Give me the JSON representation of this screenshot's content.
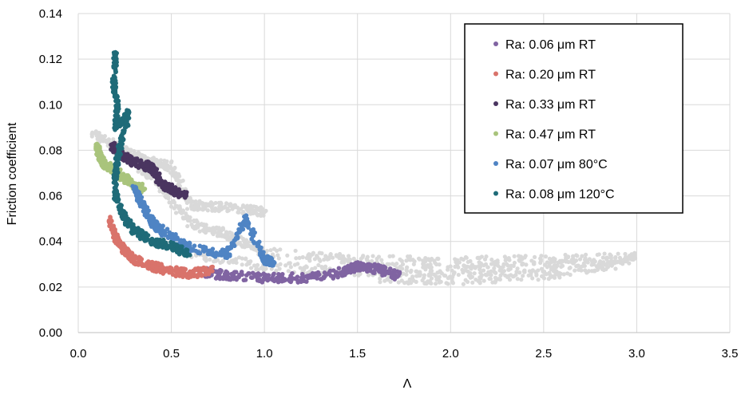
{
  "chart_data": {
    "type": "scatter",
    "title": "",
    "xlabel": "Λ",
    "ylabel": "Friction coefficient",
    "xlim": [
      0,
      3.5
    ],
    "ylim": [
      0,
      0.14
    ],
    "x_ticks": [
      "0.0",
      "0.5",
      "1.0",
      "1.5",
      "2.0",
      "2.5",
      "3.0",
      "3.5"
    ],
    "y_ticks": [
      "0.00",
      "0.02",
      "0.04",
      "0.06",
      "0.08",
      "0.10",
      "0.12",
      "0.14"
    ],
    "grid": true,
    "legend_position": "top-right",
    "background_points_color": "#d9d9d9",
    "series": [
      {
        "name": "Ra: 0.06 μm RT",
        "color": "#8064a2",
        "points": [
          [
            0.65,
            0.027
          ],
          [
            0.8,
            0.025
          ],
          [
            1.0,
            0.024
          ],
          [
            1.2,
            0.024
          ],
          [
            1.4,
            0.026
          ],
          [
            1.5,
            0.029
          ],
          [
            1.6,
            0.028
          ],
          [
            1.72,
            0.025
          ]
        ]
      },
      {
        "name": "Ra: 0.20 μm RT",
        "color": "#d9736b",
        "points": [
          [
            0.17,
            0.049
          ],
          [
            0.2,
            0.042
          ],
          [
            0.25,
            0.036
          ],
          [
            0.3,
            0.032
          ],
          [
            0.4,
            0.029
          ],
          [
            0.5,
            0.027
          ],
          [
            0.6,
            0.026
          ],
          [
            0.72,
            0.027
          ]
        ]
      },
      {
        "name": "Ra: 0.33 μm RT",
        "color": "#4a3560",
        "points": [
          [
            0.18,
            0.082
          ],
          [
            0.25,
            0.077
          ],
          [
            0.3,
            0.075
          ],
          [
            0.4,
            0.072
          ],
          [
            0.45,
            0.065
          ],
          [
            0.5,
            0.063
          ],
          [
            0.58,
            0.06
          ]
        ]
      },
      {
        "name": "Ra: 0.47 μm RT",
        "color": "#a9c47c",
        "points": [
          [
            0.1,
            0.082
          ],
          [
            0.12,
            0.076
          ],
          [
            0.15,
            0.073
          ],
          [
            0.2,
            0.071
          ],
          [
            0.25,
            0.068
          ],
          [
            0.3,
            0.064
          ],
          [
            0.35,
            0.063
          ]
        ]
      },
      {
        "name": "Ra: 0.07 μm 80°C",
        "color": "#4f84c4",
        "points": [
          [
            0.3,
            0.063
          ],
          [
            0.35,
            0.055
          ],
          [
            0.4,
            0.048
          ],
          [
            0.5,
            0.042
          ],
          [
            0.6,
            0.037
          ],
          [
            0.8,
            0.034
          ],
          [
            0.9,
            0.05
          ],
          [
            1.0,
            0.032
          ],
          [
            1.05,
            0.031
          ]
        ]
      },
      {
        "name": "Ra: 0.08 μm 120°C",
        "color": "#1f6b78",
        "points": [
          [
            0.2,
            0.123
          ],
          [
            0.19,
            0.11
          ],
          [
            0.21,
            0.1
          ],
          [
            0.2,
            0.09
          ],
          [
            0.27,
            0.096
          ],
          [
            0.22,
            0.08
          ],
          [
            0.2,
            0.07
          ],
          [
            0.2,
            0.06
          ],
          [
            0.25,
            0.05
          ],
          [
            0.3,
            0.045
          ],
          [
            0.4,
            0.04
          ],
          [
            0.5,
            0.038
          ],
          [
            0.6,
            0.034
          ]
        ]
      }
    ]
  }
}
